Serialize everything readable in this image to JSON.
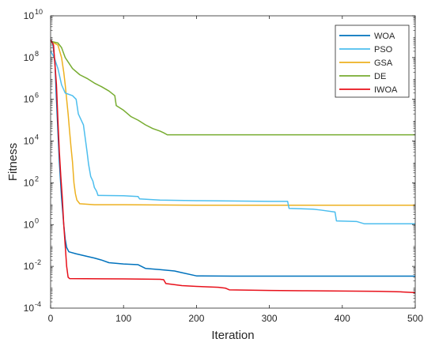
{
  "chart_data": {
    "type": "line",
    "title": "",
    "xlabel": "Iteration",
    "ylabel": "Fitness",
    "xlim": [
      0,
      500
    ],
    "ylim": [
      0.0001,
      10000000000
    ],
    "yscale": "log",
    "grid": false,
    "legend_position": "top-right",
    "x_ticks": [
      0,
      100,
      200,
      300,
      400,
      500
    ],
    "y_ticks": [
      {
        "value": 0.0001,
        "base": "10",
        "exp": "-4"
      },
      {
        "value": 0.01,
        "base": "10",
        "exp": "-2"
      },
      {
        "value": 1,
        "base": "10",
        "exp": "0"
      },
      {
        "value": 100,
        "base": "10",
        "exp": "2"
      },
      {
        "value": 10000,
        "base": "10",
        "exp": "4"
      },
      {
        "value": 1000000,
        "base": "10",
        "exp": "6"
      },
      {
        "value": 100000000,
        "base": "10",
        "exp": "8"
      },
      {
        "value": 10000000000,
        "base": "10",
        "exp": "10"
      }
    ],
    "series": [
      {
        "name": "WOA",
        "color": "#0072BD",
        "points": [
          [
            0,
            700000000
          ],
          [
            3,
            500000000
          ],
          [
            6,
            50000000
          ],
          [
            8,
            1000000
          ],
          [
            10,
            30000
          ],
          [
            12,
            1000
          ],
          [
            15,
            20
          ],
          [
            18,
            1
          ],
          [
            20,
            0.2
          ],
          [
            22,
            0.08
          ],
          [
            25,
            0.05
          ],
          [
            35,
            0.04
          ],
          [
            50,
            0.03
          ],
          [
            60,
            0.025
          ],
          [
            70,
            0.02
          ],
          [
            80,
            0.015
          ],
          [
            100,
            0.013
          ],
          [
            120,
            0.012
          ],
          [
            130,
            0.008
          ],
          [
            150,
            0.007
          ],
          [
            170,
            0.006
          ],
          [
            180,
            0.005
          ],
          [
            200,
            0.0035
          ],
          [
            250,
            0.0034
          ],
          [
            300,
            0.0034
          ],
          [
            400,
            0.0034
          ],
          [
            500,
            0.0034
          ]
        ]
      },
      {
        "name": "PSO",
        "color": "#4DBEEE",
        "points": [
          [
            0,
            200000000
          ],
          [
            5,
            100000000
          ],
          [
            10,
            30000000
          ],
          [
            15,
            5000000
          ],
          [
            20,
            2000000
          ],
          [
            30,
            1500000
          ],
          [
            35,
            1000000
          ],
          [
            38,
            200000
          ],
          [
            45,
            60000
          ],
          [
            48,
            10000
          ],
          [
            50,
            3000
          ],
          [
            52,
            800
          ],
          [
            55,
            200
          ],
          [
            58,
            120
          ],
          [
            60,
            60
          ],
          [
            63,
            40
          ],
          [
            65,
            25
          ],
          [
            100,
            24
          ],
          [
            120,
            22
          ],
          [
            122,
            17
          ],
          [
            150,
            15
          ],
          [
            200,
            14
          ],
          [
            300,
            13
          ],
          [
            325,
            13
          ],
          [
            327,
            6
          ],
          [
            360,
            5.5
          ],
          [
            370,
            5
          ],
          [
            390,
            4
          ],
          [
            392,
            1.5
          ],
          [
            420,
            1.4
          ],
          [
            430,
            1.1
          ],
          [
            500,
            1.1
          ]
        ]
      },
      {
        "name": "GSA",
        "color": "#EDB120",
        "points": [
          [
            0,
            600000000
          ],
          [
            10,
            400000000
          ],
          [
            15,
            100000000
          ],
          [
            18,
            20000000
          ],
          [
            20,
            5000000
          ],
          [
            22,
            1000000
          ],
          [
            24,
            200000
          ],
          [
            26,
            30000
          ],
          [
            28,
            5000
          ],
          [
            30,
            1000
          ],
          [
            32,
            100
          ],
          [
            34,
            30
          ],
          [
            36,
            15
          ],
          [
            40,
            10
          ],
          [
            60,
            9
          ],
          [
            100,
            9
          ],
          [
            200,
            8.5
          ],
          [
            300,
            8.5
          ],
          [
            400,
            8.5
          ],
          [
            500,
            8.5
          ]
        ]
      },
      {
        "name": "DE",
        "color": "#77AC30",
        "points": [
          [
            0,
            600000000
          ],
          [
            10,
            500000000
          ],
          [
            15,
            300000000
          ],
          [
            20,
            100000000
          ],
          [
            30,
            30000000
          ],
          [
            40,
            15000000
          ],
          [
            50,
            10000000
          ],
          [
            60,
            6000000
          ],
          [
            70,
            4000000
          ],
          [
            80,
            2500000
          ],
          [
            88,
            1500000
          ],
          [
            90,
            500000
          ],
          [
            100,
            300000
          ],
          [
            110,
            150000
          ],
          [
            120,
            100000
          ],
          [
            130,
            60000
          ],
          [
            140,
            40000
          ],
          [
            150,
            30000
          ],
          [
            155,
            25000
          ],
          [
            160,
            20000
          ],
          [
            200,
            20000
          ],
          [
            300,
            20000
          ],
          [
            400,
            20000
          ],
          [
            500,
            20000
          ]
        ]
      },
      {
        "name": "IWOA",
        "color": "#E8101A",
        "points": [
          [
            0,
            700000000
          ],
          [
            4,
            400000000
          ],
          [
            8,
            5000000
          ],
          [
            10,
            100000
          ],
          [
            12,
            3000
          ],
          [
            14,
            200
          ],
          [
            16,
            20
          ],
          [
            18,
            1
          ],
          [
            20,
            0.1
          ],
          [
            22,
            0.01
          ],
          [
            24,
            0.003
          ],
          [
            26,
            0.0026
          ],
          [
            100,
            0.0025
          ],
          [
            150,
            0.0024
          ],
          [
            155,
            0.0023
          ],
          [
            158,
            0.0015
          ],
          [
            180,
            0.0012
          ],
          [
            200,
            0.0011
          ],
          [
            230,
            0.001
          ],
          [
            240,
            0.0009
          ],
          [
            245,
            0.00075
          ],
          [
            300,
            0.0007
          ],
          [
            350,
            0.00068
          ],
          [
            400,
            0.00066
          ],
          [
            450,
            0.00064
          ],
          [
            480,
            0.0006
          ],
          [
            500,
            0.00055
          ]
        ]
      }
    ]
  }
}
